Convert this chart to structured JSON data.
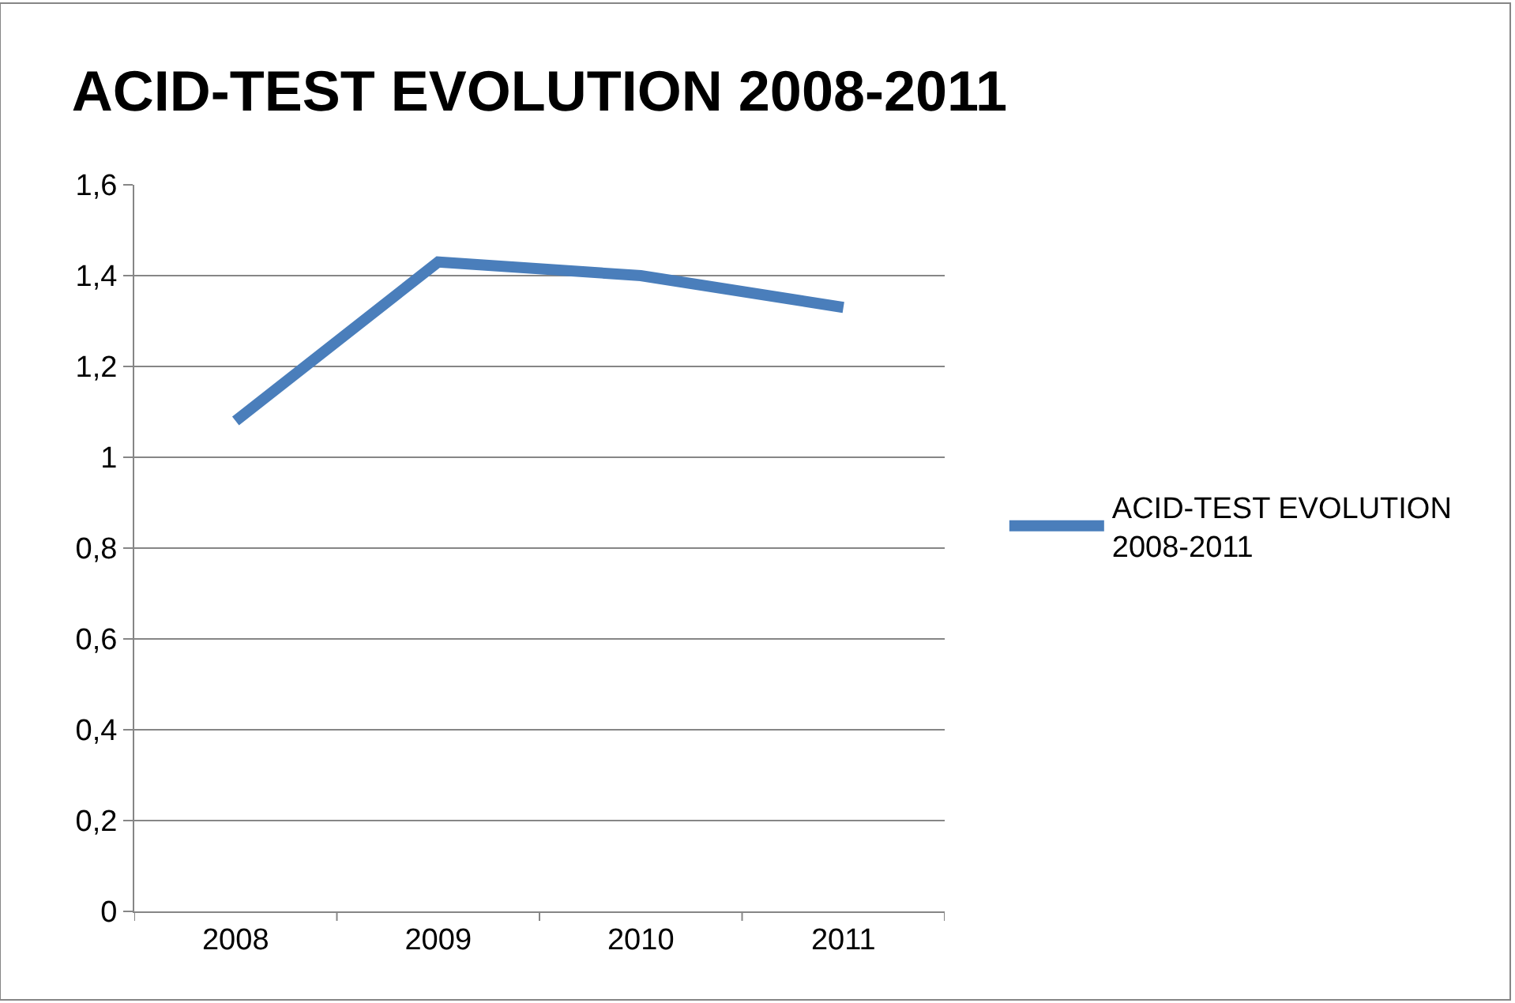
{
  "chart_data": {
    "type": "line",
    "title": "ACID-TEST EVOLUTION 2008-2011",
    "categories": [
      "2008",
      "2009",
      "2010",
      "2011"
    ],
    "series": [
      {
        "name": "ACID-TEST EVOLUTION 2008-2011",
        "color": "#4a7ebb",
        "values": [
          1.08,
          1.43,
          1.4,
          1.33
        ]
      }
    ],
    "ylim": [
      0,
      1.6
    ],
    "yticks": [
      0,
      {
        "value": 0.2,
        "label": "0,2"
      },
      {
        "value": 0.4,
        "label": "0,4"
      },
      {
        "value": 0.6,
        "label": "0,6"
      },
      {
        "value": 0.8,
        "label": "0,8"
      },
      1,
      {
        "value": 1.2,
        "label": "1,2"
      },
      {
        "value": 1.4,
        "label": "1,4"
      },
      {
        "value": 1.6,
        "label": "1,6"
      }
    ],
    "grid": "y",
    "legend": "right",
    "marker": "none",
    "line_style": "solid"
  }
}
